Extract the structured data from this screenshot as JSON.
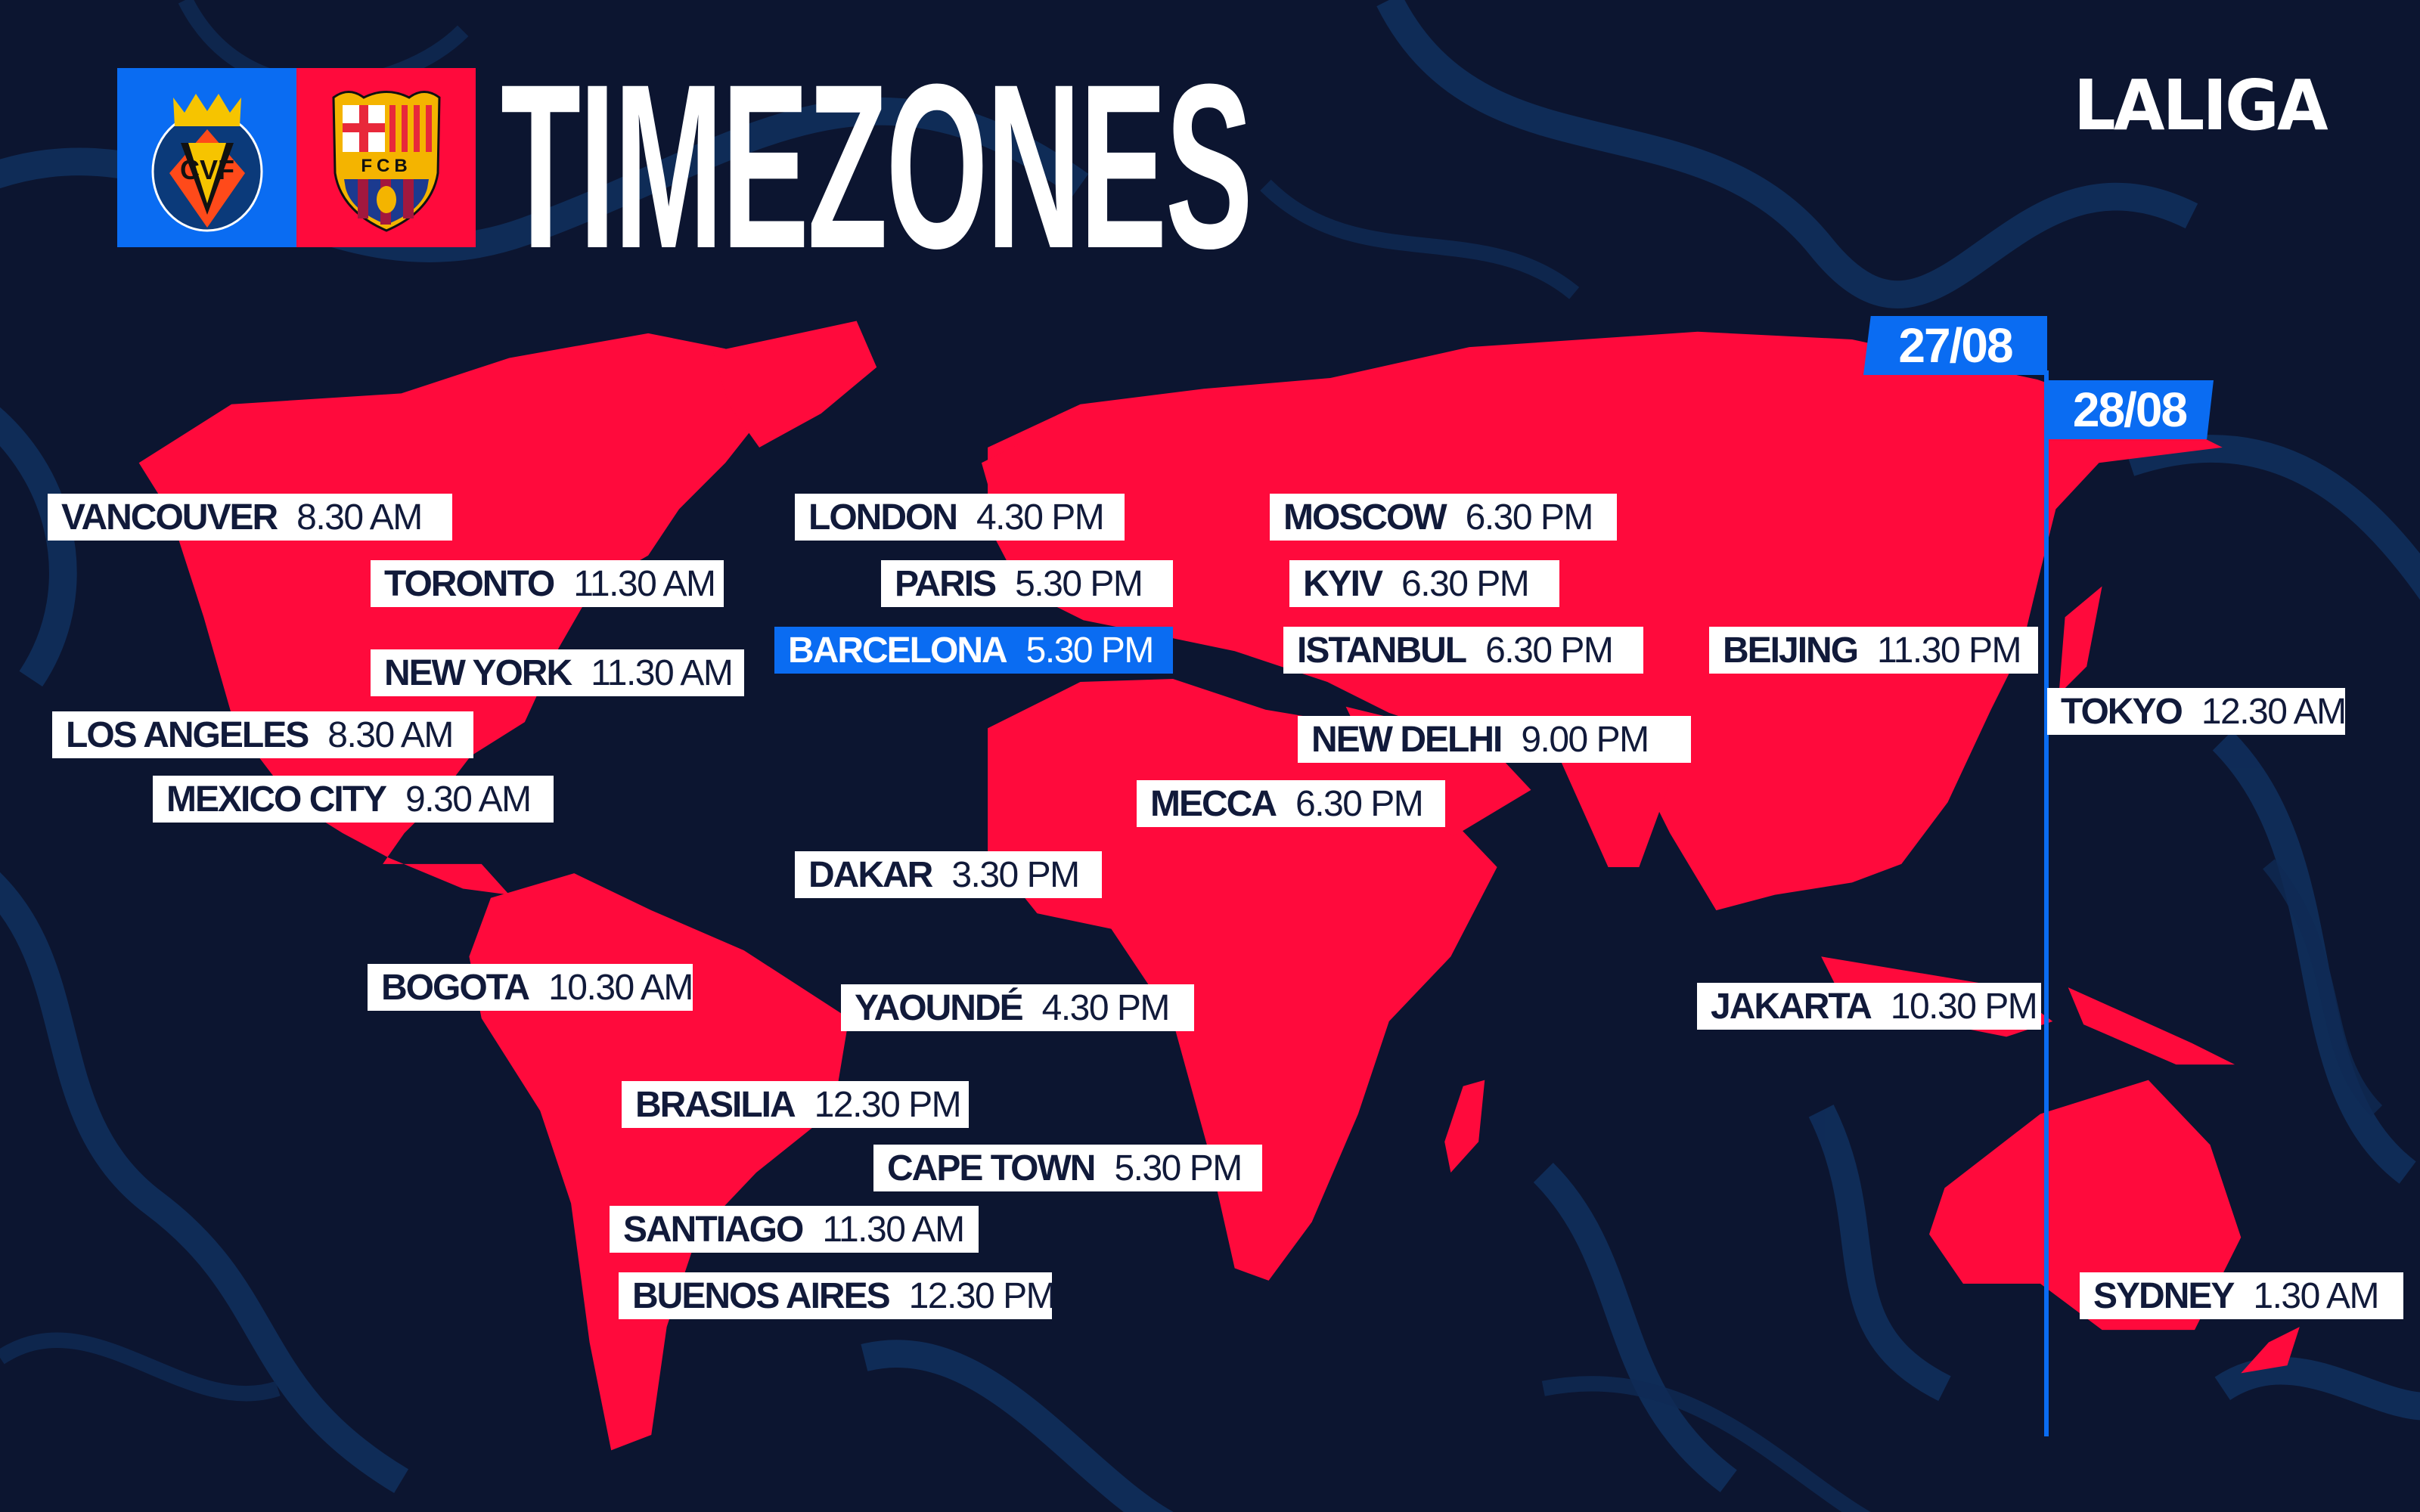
{
  "header": {
    "title": "TIMEZONES",
    "league": "LALIGA",
    "home_crest": "CVF",
    "away_crest": "FCB"
  },
  "dates": {
    "before_line": "27/08",
    "after_line": "28/08"
  },
  "colors": {
    "background": "#0c1530",
    "land": "#ff0a3c",
    "accent": "#0a6cf2",
    "label_bg": "#ffffff",
    "label_text": "#111a3a"
  },
  "labels": [
    {
      "city": "VANCOUVER",
      "time": "8.30 AM"
    },
    {
      "city": "TORONTO",
      "time": "11.30 AM"
    },
    {
      "city": "NEW YORK",
      "time": "11.30 AM"
    },
    {
      "city": "LOS ANGELES",
      "time": "8.30 AM"
    },
    {
      "city": "MEXICO CITY",
      "time": "9.30 AM"
    },
    {
      "city": "BOGOTA",
      "time": "10.30 AM"
    },
    {
      "city": "LONDON",
      "time": "4.30 PM"
    },
    {
      "city": "PARIS",
      "time": "5.30 PM"
    },
    {
      "city": "BARCELONA",
      "time": "5.30 PM",
      "highlight": true
    },
    {
      "city": "DAKAR",
      "time": "3.30 PM"
    },
    {
      "city": "YAOUNDÉ",
      "time": "4.30 PM"
    },
    {
      "city": "BRASILIA",
      "time": "12.30 PM"
    },
    {
      "city": "CAPE TOWN",
      "time": "5.30 PM"
    },
    {
      "city": "SANTIAGO",
      "time": "11.30 AM"
    },
    {
      "city": "BUENOS AIRES",
      "time": "12.30 PM"
    },
    {
      "city": "MOSCOW",
      "time": "6.30 PM"
    },
    {
      "city": "KYIV",
      "time": "6.30 PM"
    },
    {
      "city": "ISTANBUL",
      "time": "6.30 PM"
    },
    {
      "city": "NEW DELHI",
      "time": "9.00 PM"
    },
    {
      "city": "MECCA",
      "time": "6.30 PM"
    },
    {
      "city": "BEIJING",
      "time": "11.30 PM"
    },
    {
      "city": "TOKYO",
      "time": "12.30 AM"
    },
    {
      "city": "JAKARTA",
      "time": "10.30 PM"
    },
    {
      "city": "SYDNEY",
      "time": "1.30 AM"
    }
  ]
}
